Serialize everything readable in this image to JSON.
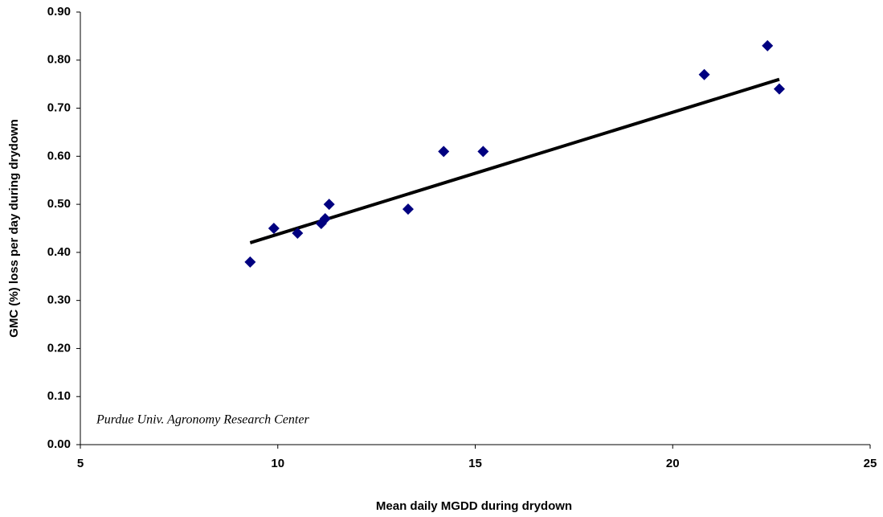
{
  "chart_data": {
    "type": "scatter",
    "xlabel": "Mean daily MGDD during drydown",
    "ylabel": "GMC (%) loss per day during drydown",
    "annotation": "Purdue Univ. Agronomy Research Center",
    "series": [
      {
        "color": "#000080",
        "x": [
          9.3,
          9.9,
          10.5,
          11.1,
          11.2,
          11.3,
          13.3,
          14.2,
          15.2,
          20.8,
          22.4,
          22.7
        ],
        "values": [
          0.38,
          0.45,
          0.44,
          0.46,
          0.47,
          0.5,
          0.49,
          0.61,
          0.61,
          0.77,
          0.83,
          0.74
        ]
      }
    ],
    "trendline": {
      "color": "#000000",
      "x": [
        9.3,
        22.7
      ],
      "values": [
        0.42,
        0.76
      ]
    },
    "xlim": [
      5,
      25
    ],
    "xticks": [
      5,
      10,
      15,
      20,
      25
    ],
    "ylim": [
      0,
      0.9
    ],
    "yticks": [
      {
        "value": 0,
        "label": "0.00"
      },
      {
        "value": 0.1,
        "label": "0.10"
      },
      {
        "value": 0.2,
        "label": "0.20"
      },
      {
        "value": 0.3,
        "label": "0.30"
      },
      {
        "value": 0.4,
        "label": "0.40"
      },
      {
        "value": 0.5,
        "label": "0.50"
      },
      {
        "value": 0.6,
        "label": "0.60"
      },
      {
        "value": 0.7,
        "label": "0.70"
      },
      {
        "value": 0.8,
        "label": "0.80"
      },
      {
        "value": 0.9,
        "label": "0.90"
      }
    ],
    "grid": false
  }
}
